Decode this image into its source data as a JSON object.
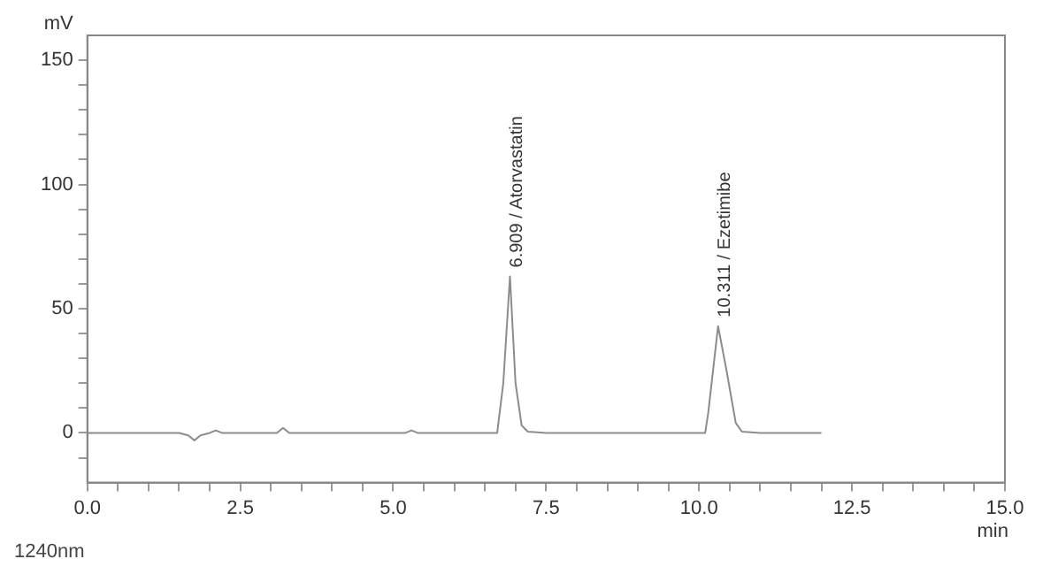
{
  "chart_data": {
    "type": "line",
    "xlabel": "min",
    "ylabel": "mV",
    "x": [
      0,
      1.5,
      1.65,
      1.75,
      1.85,
      2.0,
      2.1,
      2.2,
      3.1,
      3.2,
      3.3,
      5.2,
      5.3,
      5.4,
      6.7,
      6.8,
      6.909,
      7.0,
      7.1,
      7.2,
      7.5,
      9.0,
      10.1,
      10.15,
      10.311,
      10.45,
      10.6,
      10.7,
      11,
      12
    ],
    "series": [
      {
        "color": "#8c8c8c",
        "values": [
          0,
          0,
          -1,
          -3,
          -1,
          0,
          1,
          0,
          0,
          2,
          0,
          0,
          1,
          0,
          0,
          20,
          63,
          20,
          3,
          0.5,
          0,
          0,
          0,
          8,
          43,
          25,
          4,
          0.5,
          0,
          0
        ]
      }
    ],
    "xlim": [
      0,
      15
    ],
    "ylim": [
      -20,
      160
    ],
    "xticks": [
      {
        "value": 0,
        "label": "0.0"
      },
      {
        "value": 0.5,
        "label": null
      },
      {
        "value": 1,
        "label": null
      },
      {
        "value": 1.5,
        "label": null
      },
      {
        "value": 2,
        "label": null
      },
      {
        "value": 2.5,
        "label": "2.5"
      },
      {
        "value": 3,
        "label": null
      },
      {
        "value": 3.5,
        "label": null
      },
      {
        "value": 4,
        "label": null
      },
      {
        "value": 4.5,
        "label": null
      },
      {
        "value": 5,
        "label": "5.0"
      },
      {
        "value": 5.5,
        "label": null
      },
      {
        "value": 6,
        "label": null
      },
      {
        "value": 6.5,
        "label": null
      },
      {
        "value": 7,
        "label": null
      },
      {
        "value": 7.5,
        "label": "7.5"
      },
      {
        "value": 8,
        "label": null
      },
      {
        "value": 8.5,
        "label": null
      },
      {
        "value": 9,
        "label": null
      },
      {
        "value": 9.5,
        "label": null
      },
      {
        "value": 10,
        "label": "10.0"
      },
      {
        "value": 10.5,
        "label": null
      },
      {
        "value": 11,
        "label": null
      },
      {
        "value": 11.5,
        "label": null
      },
      {
        "value": 12,
        "label": null
      },
      {
        "value": 12.5,
        "label": "12.5"
      },
      {
        "value": 13,
        "label": null
      },
      {
        "value": 13.5,
        "label": null
      },
      {
        "value": 14,
        "label": null
      },
      {
        "value": 14.5,
        "label": null
      },
      {
        "value": 15,
        "label": "15.0"
      }
    ],
    "yticks": [
      {
        "value": -10,
        "label": null
      },
      0,
      {
        "value": 10,
        "label": null
      },
      {
        "value": 20,
        "label": null
      },
      {
        "value": 30,
        "label": null
      },
      {
        "value": 40,
        "label": null
      },
      50,
      {
        "value": 60,
        "label": null
      },
      {
        "value": 70,
        "label": null
      },
      {
        "value": 80,
        "label": null
      },
      {
        "value": 90,
        "label": null
      },
      100,
      {
        "value": 110,
        "label": null
      },
      {
        "value": 120,
        "label": null
      },
      {
        "value": 130,
        "label": null
      },
      {
        "value": 140,
        "label": null
      },
      150
    ],
    "grid": false,
    "legend": false,
    "marker": "none",
    "line_style": "solid",
    "annotations": [
      {
        "text": "6.909 / Atorvastatin",
        "x": 6.909,
        "y": 63
      },
      {
        "text": "10.311 / Ezetimibe",
        "x": 10.311,
        "y": 43
      },
      "1240nm"
    ]
  }
}
